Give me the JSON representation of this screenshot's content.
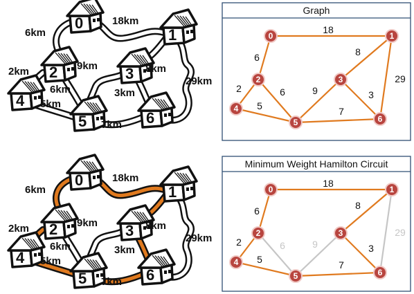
{
  "colors": {
    "orange": "#e07a1f",
    "gray": "#c6c6c6",
    "node_fill": "#b8453f",
    "node_stroke": "#f0c9c5",
    "panel_border": "#2f4f74",
    "road_outline": "#111111"
  },
  "maps": [
    {
      "id": "top",
      "highlight": []
    },
    {
      "id": "bottom",
      "highlight": [
        [
          0,
          1
        ],
        [
          1,
          3
        ],
        [
          3,
          6
        ],
        [
          6,
          5
        ],
        [
          5,
          4
        ],
        [
          4,
          2
        ],
        [
          2,
          0
        ]
      ]
    }
  ],
  "road_labels": [
    {
      "edge": [
        0,
        1
      ],
      "text": "18km"
    },
    {
      "edge": [
        0,
        2
      ],
      "text": "6km"
    },
    {
      "edge": [
        2,
        4
      ],
      "text": "2km"
    },
    {
      "edge": [
        1,
        3
      ],
      "text": "8km"
    },
    {
      "edge": [
        2,
        5
      ],
      "text": "6km"
    },
    {
      "edge": [
        3,
        5
      ],
      "text": "9km"
    },
    {
      "edge": [
        3,
        6
      ],
      "text": "3km"
    },
    {
      "edge": [
        1,
        6
      ],
      "text": "29km"
    },
    {
      "edge": [
        4,
        5
      ],
      "text": "5km"
    },
    {
      "edge": [
        5,
        6
      ],
      "text": "7km"
    }
  ],
  "houses": [
    "0",
    "1",
    "2",
    "3",
    "4",
    "5",
    "6"
  ],
  "graph_panels": [
    {
      "id": "graph",
      "title": "Graph",
      "gray_edges": []
    },
    {
      "id": "circuit",
      "title": "Minimum Weight Hamilton Circuit",
      "gray_edges": [
        [
          2,
          5
        ],
        [
          3,
          5
        ],
        [
          1,
          6
        ]
      ]
    }
  ],
  "graph_edges": [
    {
      "from": 0,
      "to": 1,
      "weight": "18"
    },
    {
      "from": 0,
      "to": 2,
      "weight": "6"
    },
    {
      "from": 2,
      "to": 4,
      "weight": "2"
    },
    {
      "from": 2,
      "to": 5,
      "weight": "6"
    },
    {
      "from": 4,
      "to": 5,
      "weight": "5"
    },
    {
      "from": 3,
      "to": 5,
      "weight": "9"
    },
    {
      "from": 1,
      "to": 3,
      "weight": "8"
    },
    {
      "from": 3,
      "to": 6,
      "weight": "3"
    },
    {
      "from": 1,
      "to": 6,
      "weight": "29"
    },
    {
      "from": 5,
      "to": 6,
      "weight": "7"
    }
  ],
  "graph_nodes": [
    "0",
    "1",
    "2",
    "3",
    "4",
    "5",
    "6"
  ]
}
